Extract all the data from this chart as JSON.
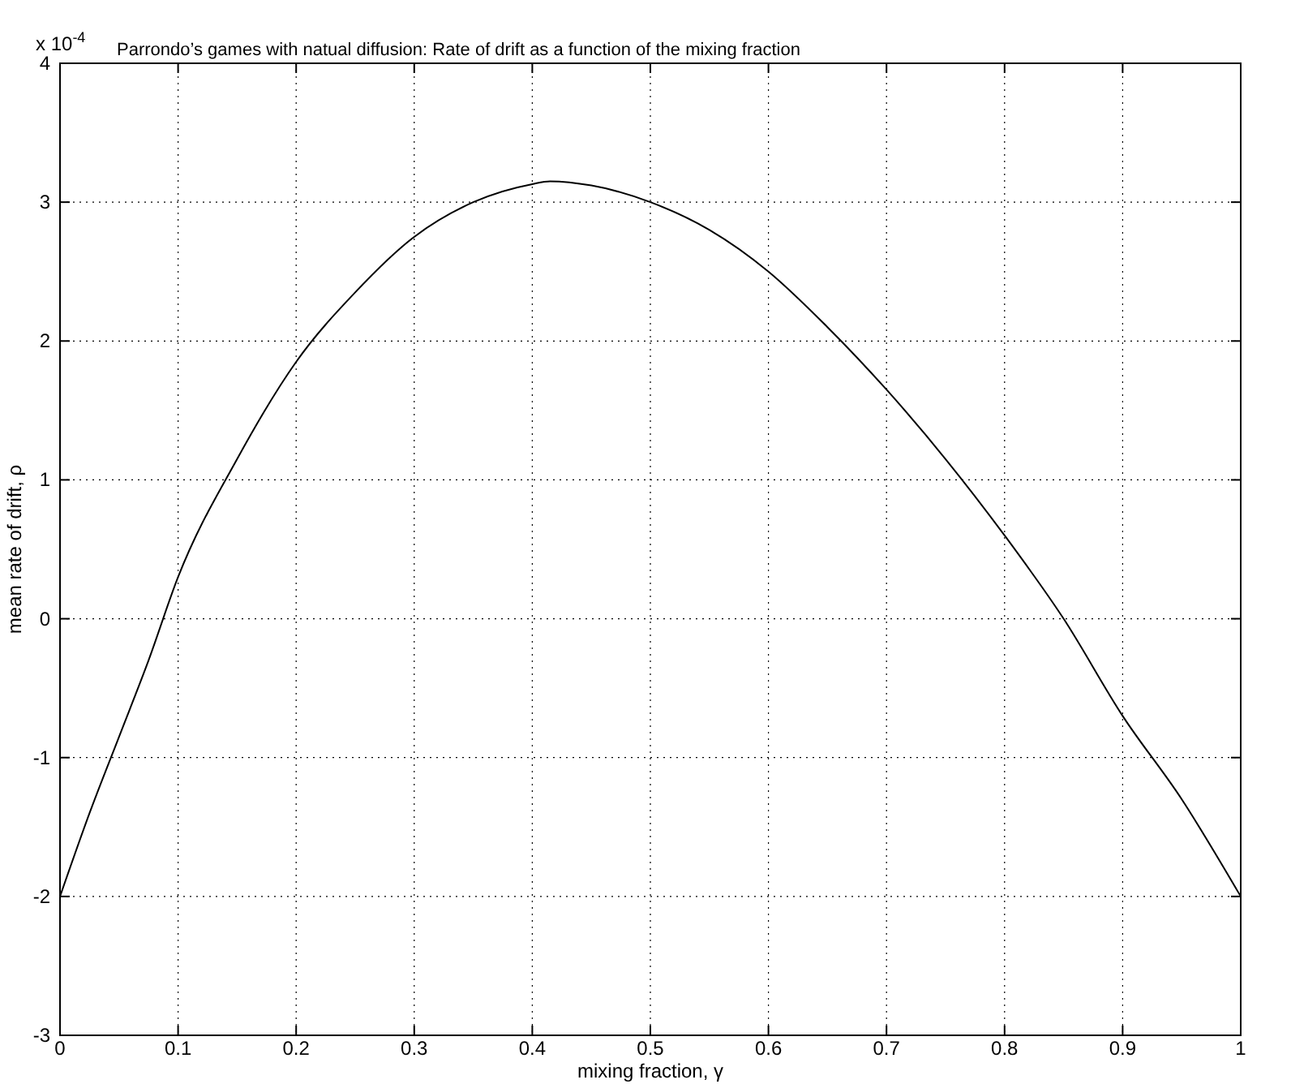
{
  "chart_data": {
    "type": "line",
    "title": "Parrondo’s games with natual diffusion: Rate of drift as a function of the mixing fraction",
    "xlabel": "mixing fraction, γ",
    "ylabel": "mean rate of drift, ρ",
    "annotations": [
      "x 10$^{-4}$"
    ],
    "x": [
      0,
      0.025,
      0.05,
      0.075,
      0.1,
      0.15,
      0.2,
      0.25,
      0.3,
      0.35,
      0.4,
      0.415,
      0.45,
      0.5,
      0.55,
      0.6,
      0.65,
      0.7,
      0.75,
      0.8,
      0.85,
      0.9,
      0.95,
      1
    ],
    "series": [
      {
        "color": "#000000",
        "values": [
          -2,
          -1.4,
          -0.85,
          -0.3,
          0.3,
          1.15,
          1.85,
          2.35,
          2.75,
          3.0,
          3.13,
          3.15,
          3.12,
          3.0,
          2.8,
          2.5,
          2.1,
          1.65,
          1.15,
          0.6,
          0.0,
          -0.7,
          -1.3,
          -2
        ]
      }
    ],
    "xlim": [
      0,
      1
    ],
    "ylim": [
      -3,
      4
    ],
    "xticks": [
      0,
      0.1,
      0.2,
      0.3,
      0.4,
      0.5,
      0.6,
      0.7,
      0.8,
      0.9,
      1
    ],
    "yticks": [
      -3,
      -2,
      -1,
      0,
      1,
      2,
      3,
      4
    ],
    "grid": true,
    "line_style": "solid",
    "marker": "none"
  }
}
